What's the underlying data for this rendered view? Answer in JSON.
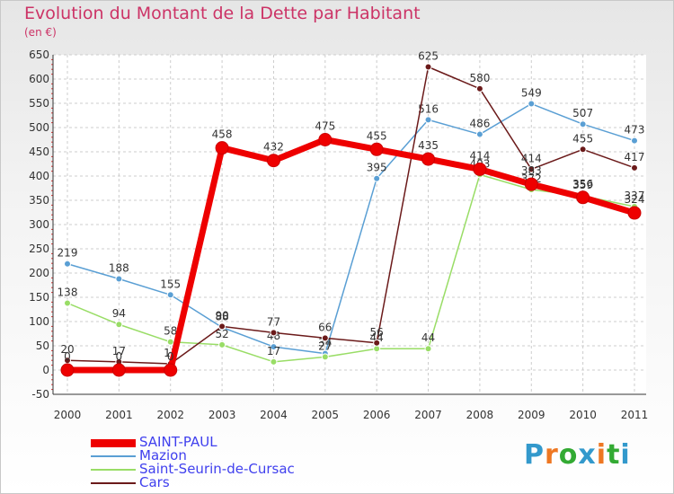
{
  "title": "Evolution du Montant de la Dette par Habitant",
  "unit": "(en €)",
  "logo": "Proxiti",
  "chart_data": {
    "type": "line",
    "title": "Evolution du Montant de la Dette par Habitant",
    "ylabel": "(en €)",
    "xlabel": "",
    "categories": [
      "2000",
      "2001",
      "2002",
      "2003",
      "2004",
      "2005",
      "2006",
      "2007",
      "2008",
      "2009",
      "2010",
      "2011"
    ],
    "ylim": [
      -50,
      650
    ],
    "yticks": [
      -50,
      0,
      50,
      100,
      150,
      200,
      250,
      300,
      350,
      400,
      450,
      500,
      550,
      600,
      650
    ],
    "grid": true,
    "legend_position": "bottom-left",
    "series": [
      {
        "name": "SAINT-PAUL",
        "color": "#ee0000",
        "values": [
          0,
          0,
          0,
          458,
          432,
          475,
          455,
          435,
          414,
          383,
          356,
          324
        ]
      },
      {
        "name": "Mazion",
        "color": "#5a9fd4",
        "values": [
          219,
          188,
          155,
          88,
          48,
          34,
          395,
          516,
          486,
          549,
          507,
          473
        ]
      },
      {
        "name": "Saint-Seurin-de-Cursac",
        "color": "#99dd66",
        "values": [
          138,
          94,
          58,
          52,
          17,
          27,
          44,
          44,
          403,
          372,
          359,
          337
        ]
      },
      {
        "name": "Cars",
        "color": "#6b1a1a",
        "values": [
          20,
          17,
          13,
          90,
          77,
          66,
          56,
          625,
          580,
          414,
          455,
          417
        ]
      }
    ]
  }
}
